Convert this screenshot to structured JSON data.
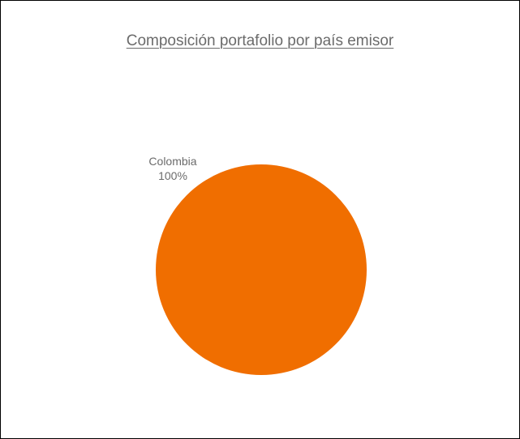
{
  "chart_data": {
    "type": "pie",
    "title": "Composición portafolio por país emisor",
    "slices": [
      {
        "label": "Colombia",
        "value": 100,
        "percent_label": "100%",
        "color": "#F06E00"
      }
    ]
  }
}
